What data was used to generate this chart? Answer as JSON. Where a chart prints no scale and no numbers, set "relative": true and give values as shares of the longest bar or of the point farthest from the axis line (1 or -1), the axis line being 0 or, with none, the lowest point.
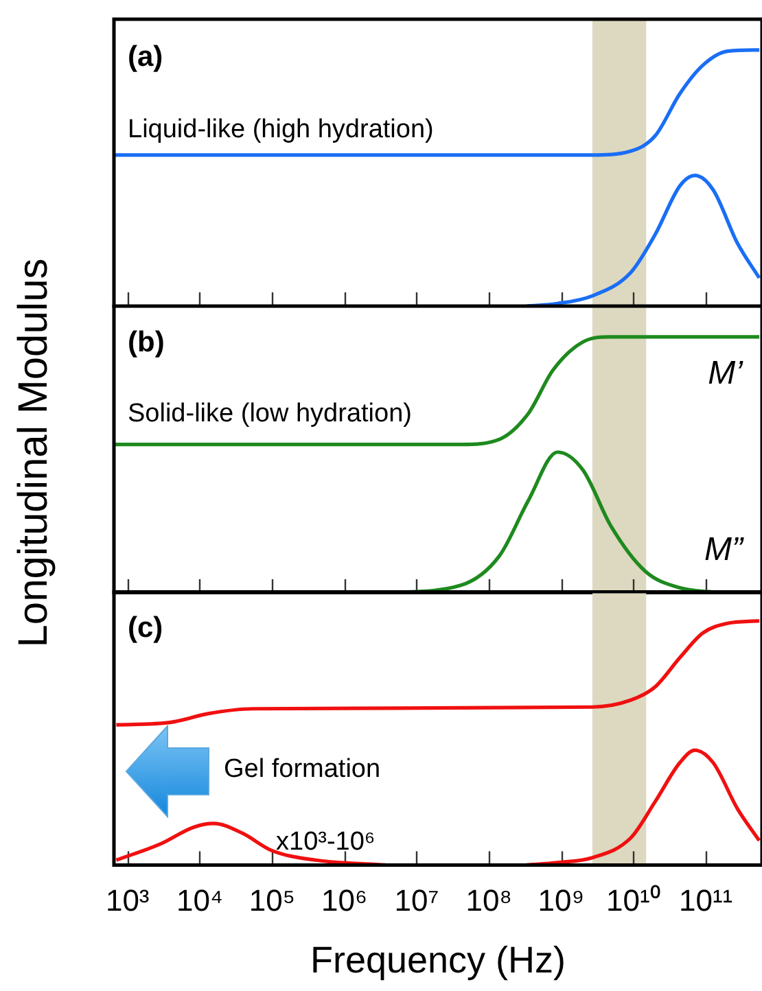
{
  "chart_data": [
    {
      "type": "line",
      "relative": true,
      "log": "x",
      "xlim": [
        650,
        600000000000.0
      ],
      "xticks": [
        {
          "value": 1000,
          "label": null
        },
        {
          "value": 10000,
          "label": null
        },
        {
          "value": 100000,
          "label": null
        },
        {
          "value": 1000000,
          "label": null
        },
        {
          "value": 10000000,
          "label": null
        },
        {
          "value": 100000000,
          "label": null
        },
        {
          "value": 1000000000,
          "label": null
        },
        {
          "value": 10000000000,
          "label": null
        },
        {
          "value": 100000000000,
          "label": null
        }
      ],
      "tick_labels": false,
      "bands": [
        {
          "axis": "x",
          "from": 2700000000.0,
          "to": 15000000000.0,
          "color": "#ddd8c0"
        }
      ],
      "annotations": [
        "(a)",
        "Liquid-like (high hydration)"
      ],
      "series": [
        {
          "color": "#1a6ef5",
          "x": [
            650,
            2700000000.0,
            9100000000.0,
            20000000000.0,
            44000000000.0,
            91000000000.0,
            200000000000.0,
            550000000000.0
          ],
          "values": [
            0.59,
            0.59,
            0.605,
            0.665,
            0.83,
            0.94,
            0.995,
            1
          ]
        },
        {
          "color": "#1a6ef5",
          "x": [
            330000000.0,
            890000000.0,
            2700000000.0,
            9100000000.0,
            20000000000.0,
            44000000000.0,
            71000000000.0,
            126000000000.0,
            275000000000.0,
            550000000000.0
          ],
          "values": [
            0,
            0.01,
            0.04,
            0.13,
            0.28,
            0.47,
            0.51,
            0.455,
            0.245,
            0.11
          ]
        }
      ]
    },
    {
      "type": "line",
      "relative": true,
      "log": "x",
      "xlim": [
        650,
        600000000000.0
      ],
      "xticks": [
        {
          "value": 1000,
          "label": null
        },
        {
          "value": 10000,
          "label": null
        },
        {
          "value": 100000,
          "label": null
        },
        {
          "value": 1000000,
          "label": null
        },
        {
          "value": 10000000,
          "label": null
        },
        {
          "value": 100000000,
          "label": null
        },
        {
          "value": 1000000000,
          "label": null
        },
        {
          "value": 10000000000,
          "label": null
        },
        {
          "value": 100000000000,
          "label": null
        }
      ],
      "tick_labels": false,
      "ylabel": "Longitudinal Modulus",
      "bands": [
        {
          "axis": "x",
          "from": 2700000000.0,
          "to": 15000000000.0,
          "color": "#ddd8c0"
        }
      ],
      "annotations": [
        "(b)",
        "Solid-like (low hydration)"
      ],
      "series": [
        {
          "name": "M’",
          "color": "#1e8a1e",
          "x": [
            650,
            41000000.0,
            140000000.0,
            350000000.0,
            770000000.0,
            2000000000.0,
            4900000000.0,
            550000000000.0
          ],
          "values": [
            0.58,
            0.58,
            0.6,
            0.7,
            0.87,
            0.98,
            1,
            1
          ]
        },
        {
          "name": "M”",
          "color": "#1e8a1e",
          "x": [
            4000000.0,
            41000000.0,
            140000000.0,
            350000000.0,
            890000000.0,
            2000000000.0,
            4900000000.0,
            14500000000.0,
            44000000000.0,
            220000000000.0
          ],
          "values": [
            0,
            0.03,
            0.145,
            0.36,
            0.55,
            0.48,
            0.26,
            0.085,
            0.02,
            0
          ]
        }
      ]
    },
    {
      "type": "line",
      "relative": true,
      "log": "x",
      "xlim": [
        650,
        600000000000.0
      ],
      "xticks": [
        {
          "value": 1000,
          "label": "10³"
        },
        {
          "value": 10000,
          "label": "10⁴"
        },
        {
          "value": 100000,
          "label": "10⁵"
        },
        {
          "value": 1000000,
          "label": "10⁶"
        },
        {
          "value": 10000000,
          "label": "10⁷"
        },
        {
          "value": 100000000,
          "label": "10⁸"
        },
        {
          "value": 1000000000,
          "label": "10⁹"
        },
        {
          "value": 10000000000,
          "label": "10¹⁰"
        },
        {
          "value": 100000000000,
          "label": "10¹¹"
        }
      ],
      "tick_labels": "x",
      "xlabel": "Frequency (Hz)",
      "bands": [
        {
          "axis": "x",
          "from": 2700000000.0,
          "to": 15000000000.0,
          "color": "#ddd8c0"
        }
      ],
      "annotations": [
        "(c)",
        "Gel formation",
        "x10³-10⁶"
      ],
      "series": [
        {
          "color": "#f01010",
          "x": [
            700,
            3900,
            13000,
            54000,
            2700000000.0,
            9100000000.0,
            20000000000.0,
            44000000000.0,
            91000000000.0,
            200000000000.0,
            550000000000.0
          ],
          "values": [
            0.574,
            0.584,
            0.62,
            0.64,
            0.647,
            0.675,
            0.73,
            0.85,
            0.95,
            0.99,
            1
          ]
        },
        {
          "color": "#f01010",
          "x": [
            700,
            2800,
            8300,
            15500,
            39000,
            98000,
            400000,
            3700000
          ],
          "values": [
            0.02,
            0.085,
            0.155,
            0.17,
            0.13,
            0.06,
            0.02,
            0
          ]
        },
        {
          "color": "#f01010",
          "x": [
            330000000.0,
            890000000.0,
            2700000000.0,
            9100000000.0,
            20000000000.0,
            44000000000.0,
            71000000000.0,
            126000000000.0,
            275000000000.0,
            550000000000.0
          ],
          "values": [
            0,
            0.01,
            0.03,
            0.11,
            0.26,
            0.42,
            0.47,
            0.42,
            0.23,
            0.1
          ]
        }
      ]
    }
  ]
}
